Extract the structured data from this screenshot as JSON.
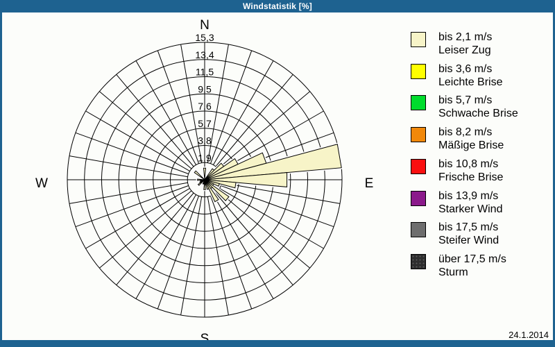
{
  "window": {
    "title": "Windstatistik [%]"
  },
  "footer": {
    "date": "24.1.2014"
  },
  "colors": {
    "titlebar_bg": "#1E6290",
    "content_bg": "#FCFDFA",
    "grid": "#000000",
    "petal_fill": "#F7F4C8"
  },
  "legend": {
    "items": [
      {
        "color": "#F7F4C8",
        "speed": "bis 2,1 m/s",
        "name": "Leiser Zug",
        "speckled": false
      },
      {
        "color": "#FFFF00",
        "speed": "bis 3,6 m/s",
        "name": "Leichte Brise",
        "speckled": false
      },
      {
        "color": "#00DC2D",
        "speed": "bis 5,7 m/s",
        "name": "Schwache Brise",
        "speckled": false
      },
      {
        "color": "#F1880A",
        "speed": "bis 8,2 m/s",
        "name": "Mäßige Brise",
        "speckled": false
      },
      {
        "color": "#FA0F0F",
        "speed": "bis 10,8 m/s",
        "name": "Frische Brise",
        "speckled": false
      },
      {
        "color": "#8B1A8B",
        "speed": "bis 13,9 m/s",
        "name": "Starker Wind",
        "speckled": false
      },
      {
        "color": "#6E6E6E",
        "speed": "bis 17,5 m/s",
        "name": "Steifer Wind",
        "speckled": false
      },
      {
        "color": "#2E2E2E",
        "speed": "über 17,5 m/s",
        "name": "Sturm",
        "speckled": true
      }
    ]
  },
  "chart_data": {
    "type": "bar",
    "subtype": "wind_rose_polar",
    "title": "Windstatistik [%]",
    "units": "%",
    "sector_width_deg": 10,
    "rmax": 15.3,
    "ring_values": [
      1.9,
      3.8,
      5.7,
      7.6,
      9.5,
      11.5,
      13.4,
      15.3
    ],
    "ring_labels": [
      "1,9",
      "3,8",
      "5,7",
      "7,6",
      "9,5",
      "11,5",
      "13,4",
      "15,3"
    ],
    "compass": {
      "north": "N",
      "east": "E",
      "south": "S",
      "west": "W"
    },
    "series_name": "bis 2,1 m/s (Leiser Zug)",
    "petal_color": "#F7F4C8",
    "petals": [
      {
        "dir": 0,
        "value": 1.3
      },
      {
        "dir": 40,
        "value": 1.5
      },
      {
        "dir": 50,
        "value": 2.6
      },
      {
        "dir": 60,
        "value": 4.1
      },
      {
        "dir": 70,
        "value": 7.1
      },
      {
        "dir": 80,
        "value": 15.3
      },
      {
        "dir": 90,
        "value": 9.2
      },
      {
        "dir": 100,
        "value": 3.5
      },
      {
        "dir": 110,
        "value": 1.7
      },
      {
        "dir": 120,
        "value": 1.1
      },
      {
        "dir": 130,
        "value": 3.3
      },
      {
        "dir": 140,
        "value": 1.2
      },
      {
        "dir": 150,
        "value": 2.7
      },
      {
        "dir": 160,
        "value": 1.1
      },
      {
        "dir": 170,
        "value": 0.6
      },
      {
        "dir": 180,
        "value": 1.1
      },
      {
        "dir": 200,
        "value": 0.5
      },
      {
        "dir": 230,
        "value": 0.9
      },
      {
        "dir": 240,
        "value": 0.6
      },
      {
        "dir": 250,
        "value": 0.5
      },
      {
        "dir": 260,
        "value": 0.4
      },
      {
        "dir": 270,
        "value": 0.8
      },
      {
        "dir": 310,
        "value": 1.4
      }
    ]
  }
}
